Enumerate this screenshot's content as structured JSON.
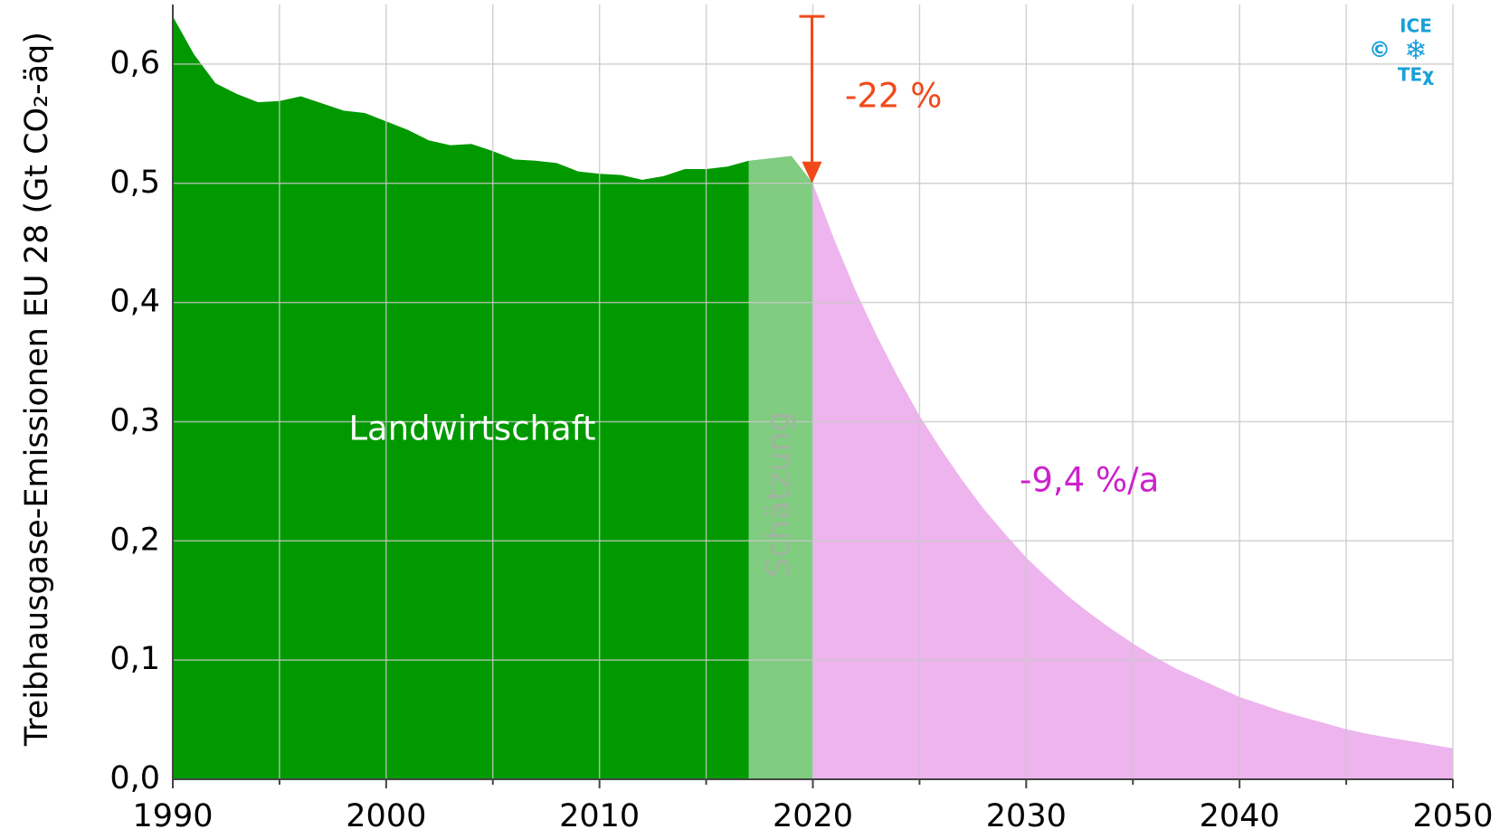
{
  "chart_data": {
    "type": "area",
    "ylabel": "Treibhausgase-Emissionen EU 28 (Gt CO₂-äq)",
    "xlim": [
      1990,
      2050
    ],
    "ylim": [
      0,
      0.65
    ],
    "xticks": [
      1990,
      2000,
      2010,
      2020,
      2030,
      2040,
      2050
    ],
    "xminor": [
      1995,
      2005,
      2015,
      2025,
      2035,
      2045
    ],
    "yticks": [
      {
        "value": 0,
        "label": "0,0"
      },
      {
        "value": 0.1,
        "label": "0,1"
      },
      {
        "value": 0.2,
        "label": "0,2"
      },
      {
        "value": 0.3,
        "label": "0,3"
      },
      {
        "value": 0.4,
        "label": "0,4"
      },
      {
        "value": 0.5,
        "label": "0,5"
      },
      {
        "value": 0.6,
        "label": "0,6"
      }
    ],
    "grid": true,
    "series": [
      {
        "color": "#009900",
        "x": [
          1990,
          1991,
          1992,
          1993,
          1994,
          1995,
          1996,
          1997,
          1998,
          1999,
          2000,
          2001,
          2002,
          2003,
          2004,
          2005,
          2006,
          2007,
          2008,
          2009,
          2010,
          2011,
          2012,
          2013,
          2014,
          2015,
          2016,
          2017
        ],
        "values": [
          0.64,
          0.608,
          0.584,
          0.575,
          0.568,
          0.569,
          0.573,
          0.567,
          0.561,
          0.559,
          0.552,
          0.545,
          0.536,
          0.532,
          0.533,
          0.527,
          0.52,
          0.519,
          0.517,
          0.51,
          0.508,
          0.507,
          0.503,
          0.506,
          0.512,
          0.512,
          0.514,
          0.519
        ]
      },
      {
        "color": "#80cc80",
        "x": [
          2017,
          2018,
          2019,
          2020
        ],
        "values": [
          0.519,
          0.521,
          0.523,
          0.5
        ]
      },
      {
        "color": "#eeb4ee",
        "x": [
          2020,
          2021,
          2022,
          2023,
          2024,
          2025,
          2026,
          2027,
          2028,
          2029,
          2030,
          2031,
          2032,
          2033,
          2034,
          2035,
          2036,
          2037,
          2038,
          2039,
          2040,
          2041,
          2042,
          2043,
          2044,
          2045,
          2046,
          2047,
          2048,
          2049,
          2050
        ],
        "values": [
          0.5,
          0.453,
          0.41,
          0.372,
          0.337,
          0.305,
          0.277,
          0.251,
          0.227,
          0.206,
          0.186,
          0.169,
          0.153,
          0.139,
          0.126,
          0.114,
          0.103,
          0.093,
          0.085,
          0.077,
          0.069,
          0.063,
          0.057,
          0.052,
          0.047,
          0.042,
          0.038,
          0.035,
          0.032,
          0.029,
          0.026
        ]
      }
    ],
    "annotations": {
      "history": "Landwirtschaft",
      "estimate": "Schätzung",
      "reduction": "-22 %",
      "rate": "-9,4 %/a"
    },
    "logo": {
      "top": "ICE",
      "bottom": "TEχ",
      "mark": "©"
    }
  }
}
